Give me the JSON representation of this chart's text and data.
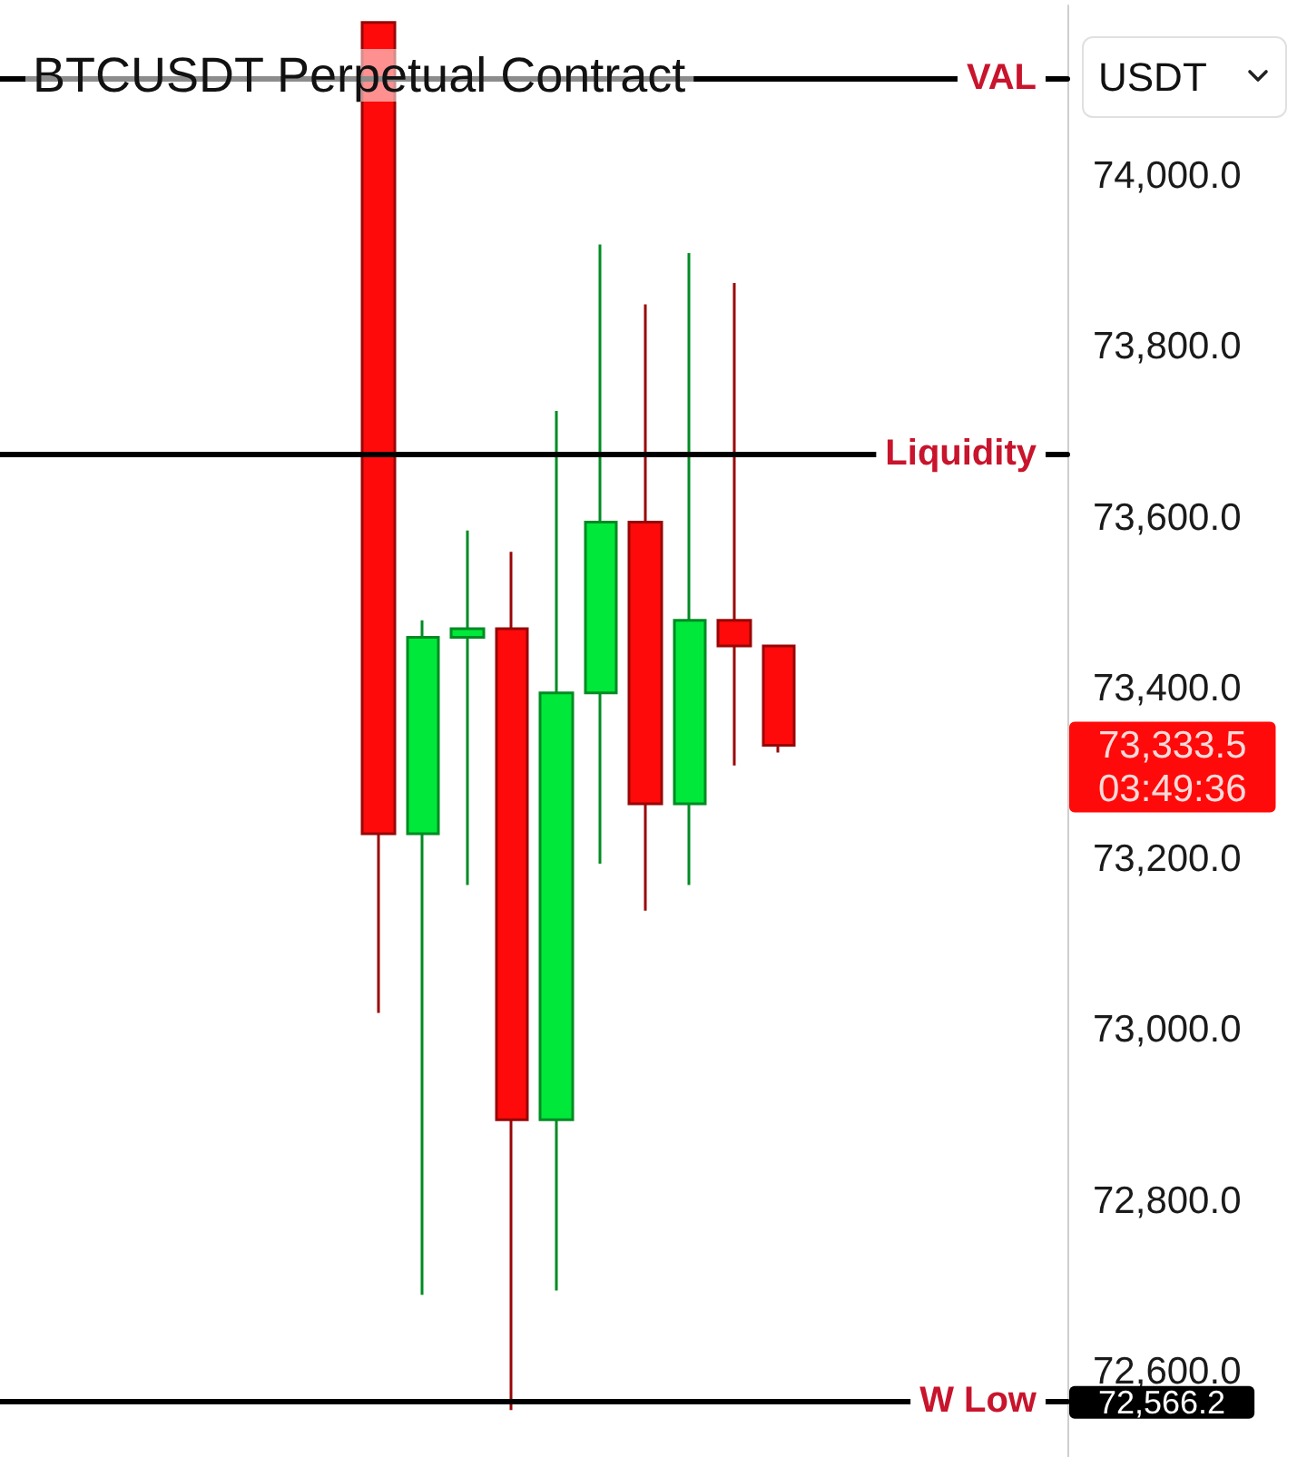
{
  "chart_data": {
    "type": "candlestick",
    "title": "BTCUSDT Perpetual Contract",
    "categories": [
      null,
      null,
      null,
      null,
      null,
      null,
      null,
      null,
      null,
      null,
      null,
      null,
      null,
      null,
      null,
      null,
      null,
      null,
      null,
      null,
      null,
      null,
      null,
      null
    ],
    "ohlc": [
      null,
      null,
      null,
      null,
      null,
      null,
      null,
      null,
      [
        74180,
        74180,
        73020,
        73230
      ],
      [
        73230,
        73480,
        72690,
        73460
      ],
      [
        73460,
        73585,
        73170,
        73470
      ],
      [
        73470,
        73560,
        72555,
        72895
      ],
      [
        72895,
        73725,
        72695,
        73395
      ],
      [
        73395,
        73920,
        73195,
        73595
      ],
      [
        73595,
        73850,
        73140,
        73265
      ],
      [
        73265,
        73910,
        73170,
        73480
      ],
      [
        73480,
        73875,
        73310,
        73450
      ],
      [
        73450,
        73450,
        73325,
        73333.5
      ],
      null,
      null,
      null,
      null,
      null,
      null
    ],
    "colors": [
      null,
      null,
      null,
      null,
      null,
      null,
      null,
      null,
      "#ff0a0a",
      "#00e83a",
      "#00e83a",
      "#ff0a0a",
      "#00e83a",
      "#00e83a",
      "#ff0a0a",
      "#00e83a",
      "#ff0a0a",
      "#ff0a0a",
      null,
      null,
      null,
      null,
      null,
      null
    ],
    "ylim": [
      72500,
      74200
    ],
    "yticks": [
      {
        "value": 72600,
        "label": "72,600.0"
      },
      {
        "value": 72800,
        "label": "72,800.0"
      },
      {
        "value": 73000,
        "label": "73,000.0"
      },
      {
        "value": 73200,
        "label": "73,200.0"
      },
      {
        "value": 73400,
        "label": "73,400.0"
      },
      {
        "value": 73600,
        "label": "73,600.0"
      },
      {
        "value": 73800,
        "label": "73,800.0"
      },
      {
        "value": 74000,
        "label": "74,000.0"
      }
    ],
    "tick_labels": "y",
    "ref_lines": [
      {
        "axis": "y",
        "value": 74115,
        "label": "VAL",
        "color": "#000000"
      },
      {
        "axis": "y",
        "value": 73675,
        "label": "Liquidity",
        "color": "#000000"
      },
      {
        "axis": "y",
        "value": 72566.2,
        "label": "W Low",
        "color": "#000000"
      }
    ],
    "annotations": [
      "USDT",
      "73,333.5",
      "03:49:36",
      "72,566.2"
    ]
  }
}
